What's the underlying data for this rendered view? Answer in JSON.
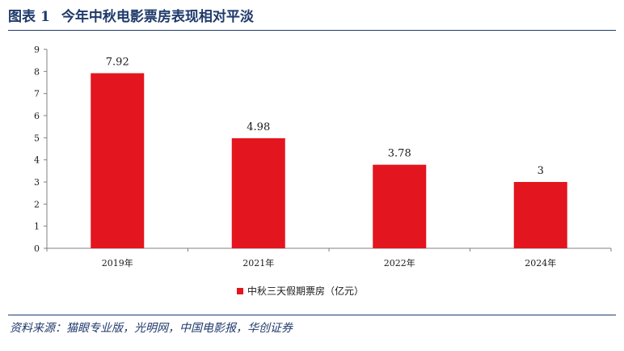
{
  "header": {
    "figure_label": "图表",
    "figure_number": "1",
    "title": "今年中秋电影票房表现相对平淡"
  },
  "source": "资料来源：猫眼专业版，光明网，中国电影报，华创证券",
  "colors": {
    "bar": "#e3151f",
    "header": "#1f3a6b",
    "axis": "#808080"
  },
  "chart_data": {
    "type": "bar",
    "categories": [
      "2019年",
      "2021年",
      "2022年",
      "2024年"
    ],
    "series": [
      {
        "name": "中秋三天假期票房（亿元）",
        "values": [
          7.92,
          4.98,
          3.78,
          3
        ]
      }
    ],
    "data_labels": [
      "7.92",
      "4.98",
      "3.78",
      "3"
    ],
    "ylim": [
      0,
      9
    ],
    "yticks": [
      "0",
      "1",
      "2",
      "3",
      "4",
      "5",
      "6",
      "7",
      "8",
      "9"
    ],
    "grid": false,
    "legend_position": "bottom",
    "xlabel": "",
    "ylabel": ""
  }
}
